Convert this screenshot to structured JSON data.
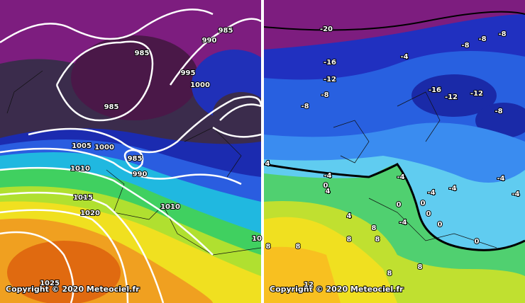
{
  "left_panel": {
    "isobar_labels": [
      "985",
      "990",
      "985",
      "995",
      "1000",
      "985",
      "1005",
      "1000",
      "985",
      "990",
      "1010",
      "1015",
      "1020",
      "1010",
      "10",
      "1025"
    ],
    "copyright": "Copyright © 2020 Meteociel.fr"
  },
  "right_panel": {
    "temperature_labels": [
      "-20",
      "-8",
      "-8",
      "-8",
      "-16",
      "-4",
      "-12",
      "-8",
      "-8",
      "-16",
      "-12",
      "-12",
      "-8",
      "4",
      "-4",
      "0",
      "4",
      "-4",
      "-4",
      "-4",
      "-4",
      "-4",
      "0",
      "0",
      "0",
      "4",
      "-4",
      "0",
      "8",
      "8",
      "8",
      "8",
      "8",
      "0",
      "8",
      "8",
      "12"
    ],
    "copyright": "Copyright © 2020 Meteociel.fr"
  }
}
